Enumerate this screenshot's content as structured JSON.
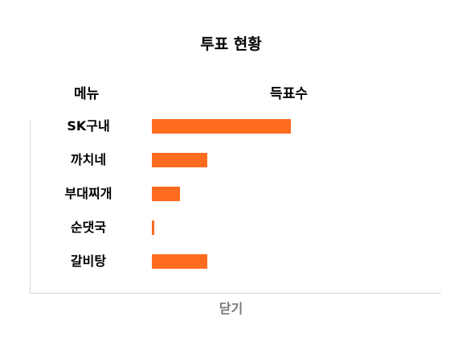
{
  "dialog": {
    "title": "투표 현황",
    "columns": {
      "menu": "메뉴",
      "votes": "득표수"
    },
    "close_label": "닫기"
  },
  "colors": {
    "bar": "#ff6b1f"
  },
  "chart_data": {
    "type": "bar",
    "orientation": "horizontal",
    "categories": [
      "SK구내",
      "까치네",
      "부대찌개",
      "순댓국",
      "갈비탕"
    ],
    "values": [
      100,
      40,
      20,
      2,
      40
    ],
    "xlim": [
      0,
      100
    ]
  }
}
